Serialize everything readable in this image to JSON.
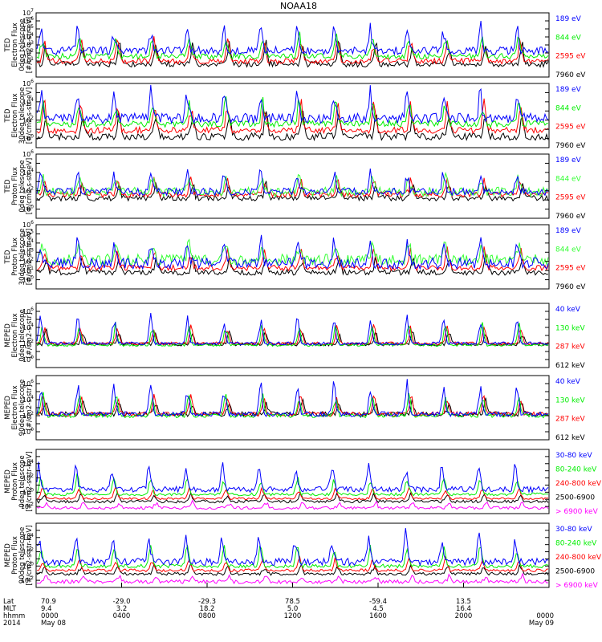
{
  "title": "NOAA18",
  "colors": {
    "black": "#000000",
    "blue": "#0000ff",
    "green": "#00ee00",
    "lime": "#33ff33",
    "red": "#ff0000",
    "magenta": "#ff00ff",
    "frame": "#000000"
  },
  "chart_data": [
    {
      "type": "line",
      "ylabel": [
        "TED",
        "Electron Flux",
        "0deg telescope",
        "[#/cm2-s-str-eV]"
      ],
      "ylog": [
        -1,
        7
      ],
      "ytick_exps": [
        1,
        2,
        3,
        4,
        5,
        6,
        7
      ],
      "ytick_label_exps": [
        1,
        2,
        3,
        4,
        5,
        6,
        7
      ],
      "series": [
        {
          "name": "7960 eV",
          "color": "black",
          "base_exp": 0.6,
          "band": 0.35,
          "peak": 2.5,
          "seed": 11
        },
        {
          "name": "2595 eV",
          "color": "red",
          "base_exp": 1.0,
          "band": 0.35,
          "peak": 2.8,
          "seed": 12
        },
        {
          "name": "844 eV",
          "color": "green",
          "base_exp": 1.6,
          "band": 0.35,
          "peak": 2.6,
          "seed": 13
        },
        {
          "name": "189 eV",
          "color": "blue",
          "base_exp": 2.3,
          "band": 0.5,
          "peak": 2.8,
          "seed": 14
        }
      ]
    },
    {
      "type": "line",
      "ylabel": [
        "TED",
        "Electron Flux",
        "30deg telescope",
        "[#/cm2-s-str-eV]"
      ],
      "ylog": [
        -1,
        6
      ],
      "ytick_exps": [
        0,
        1,
        2,
        3,
        4,
        5,
        6
      ],
      "ytick_label_exps": [
        0,
        2,
        4,
        6
      ],
      "series": [
        {
          "name": "7960 eV",
          "color": "black",
          "base_exp": 0.2,
          "band": 0.4,
          "peak": 2.5,
          "seed": 21
        },
        {
          "name": "2595 eV",
          "color": "red",
          "base_exp": 0.9,
          "band": 0.35,
          "peak": 2.8,
          "seed": 22
        },
        {
          "name": "844 eV",
          "color": "green",
          "base_exp": 1.6,
          "band": 0.35,
          "peak": 2.5,
          "seed": 23
        },
        {
          "name": "189 eV",
          "color": "blue",
          "base_exp": 2.2,
          "band": 0.55,
          "peak": 2.9,
          "seed": 24
        }
      ]
    },
    {
      "type": "line",
      "ylabel": [
        "TED",
        "Proton Flux",
        "0deg telescope",
        "[#/cm2-s-str-eV]"
      ],
      "ylog": [
        -1,
        6
      ],
      "ytick_exps": [
        0,
        1,
        2,
        3,
        4,
        5,
        6
      ],
      "ytick_label_exps": [
        0,
        2,
        4,
        6
      ],
      "series": [
        {
          "name": "7960 eV",
          "color": "black",
          "base_exp": 1.2,
          "band": 0.3,
          "peak": 1.5,
          "seed": 31
        },
        {
          "name": "2595 eV",
          "color": "red",
          "base_exp": 1.6,
          "band": 0.3,
          "peak": 1.8,
          "seed": 32
        },
        {
          "name": "844 eV",
          "color": "lime",
          "base_exp": 1.9,
          "band": 0.5,
          "peak": 1.8,
          "seed": 33
        },
        {
          "name": "189 eV",
          "color": "blue",
          "base_exp": 1.9,
          "band": 0.4,
          "peak": 2.2,
          "seed": 34
        }
      ]
    },
    {
      "type": "line",
      "ylabel": [
        "TED",
        "Proton Flux",
        "30deg telescope",
        "[#/cm2-s-str-eV]"
      ],
      "ylog": [
        -1,
        6
      ],
      "ytick_exps": [
        0,
        1,
        2,
        3,
        4,
        5,
        6
      ],
      "ytick_label_exps": [
        0,
        1,
        2,
        3,
        4,
        5,
        6
      ],
      "series": [
        {
          "name": "7960 eV",
          "color": "black",
          "base_exp": 0.8,
          "band": 0.3,
          "peak": 1.6,
          "seed": 41
        },
        {
          "name": "2595 eV",
          "color": "red",
          "base_exp": 1.3,
          "band": 0.3,
          "peak": 1.9,
          "seed": 42
        },
        {
          "name": "844 eV",
          "color": "lime",
          "base_exp": 2.2,
          "band": 0.6,
          "peak": 1.8,
          "seed": 43
        },
        {
          "name": "189 eV",
          "color": "blue",
          "base_exp": 1.8,
          "band": 0.6,
          "peak": 2.4,
          "seed": 44
        }
      ]
    },
    {
      "type": "line",
      "ylabel": [
        "MEPED",
        "Electron Flux",
        "0deg telescope",
        "[#/cm2-s-str]"
      ],
      "ylog": [
        -1,
        7
      ],
      "ytick_exps": [
        0,
        1,
        2,
        3,
        4,
        5,
        6,
        7
      ],
      "ytick_label_exps": [
        0,
        2,
        4,
        6
      ],
      "series": [
        {
          "name": "612 keV",
          "color": "black",
          "base_exp": 1.9,
          "band": 0.2,
          "peak": 1.5,
          "seed": 51
        },
        {
          "name": "287 keV",
          "color": "red",
          "base_exp": 2.0,
          "band": 0.2,
          "peak": 2.0,
          "seed": 52
        },
        {
          "name": "130 keV",
          "color": "green",
          "base_exp": 1.8,
          "band": 0.15,
          "peak": 2.5,
          "seed": 53
        },
        {
          "name": "40 keV",
          "color": "blue",
          "base_exp": 2.0,
          "band": 0.2,
          "peak": 3.4,
          "seed": 54
        }
      ]
    },
    {
      "type": "line",
      "ylabel": [
        "MEPED",
        "Electron Flux",
        "90deg telescope",
        "[#/cm2-s-str]"
      ],
      "ylog": [
        -1,
        7
      ],
      "ytick_exps": [
        0,
        1,
        2,
        3,
        4,
        5,
        6,
        7
      ],
      "ytick_label_exps": [
        0,
        2,
        4,
        6
      ],
      "series": [
        {
          "name": "612 keV",
          "color": "black",
          "base_exp": 2.2,
          "band": 0.3,
          "peak": 1.6,
          "seed": 61
        },
        {
          "name": "287 keV",
          "color": "red",
          "base_exp": 2.2,
          "band": 0.3,
          "peak": 2.2,
          "seed": 62
        },
        {
          "name": "130 keV",
          "color": "green",
          "base_exp": 2.0,
          "band": 0.25,
          "peak": 2.8,
          "seed": 63
        },
        {
          "name": "40 keV",
          "color": "blue",
          "base_exp": 2.2,
          "band": 0.3,
          "peak": 3.6,
          "seed": 64
        }
      ]
    },
    {
      "type": "line",
      "ylabel": [
        "MEPED",
        "Proton Flux",
        "0deg telescope",
        "[#/cm2-s-str-keV]"
      ],
      "ylog": [
        -3,
        6
      ],
      "ytick_exps": [
        -2,
        -1,
        0,
        1,
        2,
        3,
        4,
        5,
        6
      ],
      "ytick_label_exps": [
        -2,
        0,
        2,
        4
      ],
      "series": [
        {
          "name": "> 6900 keV",
          "color": "magenta",
          "base_exp": -2.2,
          "band": 0.2,
          "peak": 0.8,
          "seed": 71
        },
        {
          "name": "2500-6900",
          "color": "black",
          "base_exp": -1.3,
          "band": 0.2,
          "peak": 1.0,
          "seed": 72
        },
        {
          "name": "240-800 keV",
          "color": "red",
          "base_exp": -0.9,
          "band": 0.15,
          "peak": 1.5,
          "seed": 73
        },
        {
          "name": "80-240 keV",
          "color": "green",
          "base_exp": -0.3,
          "band": 0.2,
          "peak": 2.4,
          "seed": 74
        },
        {
          "name": "30-80 keV",
          "color": "blue",
          "base_exp": 0.4,
          "band": 0.4,
          "peak": 3.4,
          "seed": 75
        }
      ]
    },
    {
      "type": "line",
      "ylabel": [
        "MEPED",
        "Proton Flux",
        "90deg telescope",
        "[#/cm2-s-str-keV]"
      ],
      "ylog": [
        -3,
        6
      ],
      "ytick_exps": [
        -2,
        -1,
        0,
        1,
        2,
        3,
        4,
        5,
        6
      ],
      "ytick_label_exps": [
        -2,
        0,
        2,
        4
      ],
      "series": [
        {
          "name": "> 6900 keV",
          "color": "magenta",
          "base_exp": -2.2,
          "band": 0.25,
          "peak": 0.8,
          "seed": 81
        },
        {
          "name": "2500-6900",
          "color": "black",
          "base_exp": -1.1,
          "band": 0.2,
          "peak": 1.2,
          "seed": 82
        },
        {
          "name": "240-800 keV",
          "color": "red",
          "base_exp": -0.6,
          "band": 0.2,
          "peak": 1.6,
          "seed": 83
        },
        {
          "name": "80-240 keV",
          "color": "green",
          "base_exp": 0.0,
          "band": 0.25,
          "peak": 2.6,
          "seed": 84
        },
        {
          "name": "30-80 keV",
          "color": "blue",
          "base_exp": 0.6,
          "band": 0.5,
          "peak": 3.6,
          "seed": 85
        }
      ]
    }
  ],
  "x_axis": {
    "row_labels": [
      "Lat",
      "MLT",
      "hhmm",
      "2014"
    ],
    "ticks": [
      {
        "lat": "70.9",
        "mlt": "9.4",
        "hhmm": "0000",
        "date": "May 08"
      },
      {
        "lat": "-29.0",
        "mlt": "3.2",
        "hhmm": "0400",
        "date": ""
      },
      {
        "lat": "-29.3",
        "mlt": "18.2",
        "hhmm": "0800",
        "date": ""
      },
      {
        "lat": "78.5",
        "mlt": "5.0",
        "hhmm": "1200",
        "date": ""
      },
      {
        "lat": "-59.4",
        "mlt": "4.5",
        "hhmm": "1600",
        "date": ""
      },
      {
        "lat": "13.5",
        "mlt": "16.4",
        "hhmm": "2000",
        "date": ""
      },
      {
        "lat": "",
        "mlt": "",
        "hhmm": "0000",
        "date": "May 09"
      }
    ]
  }
}
